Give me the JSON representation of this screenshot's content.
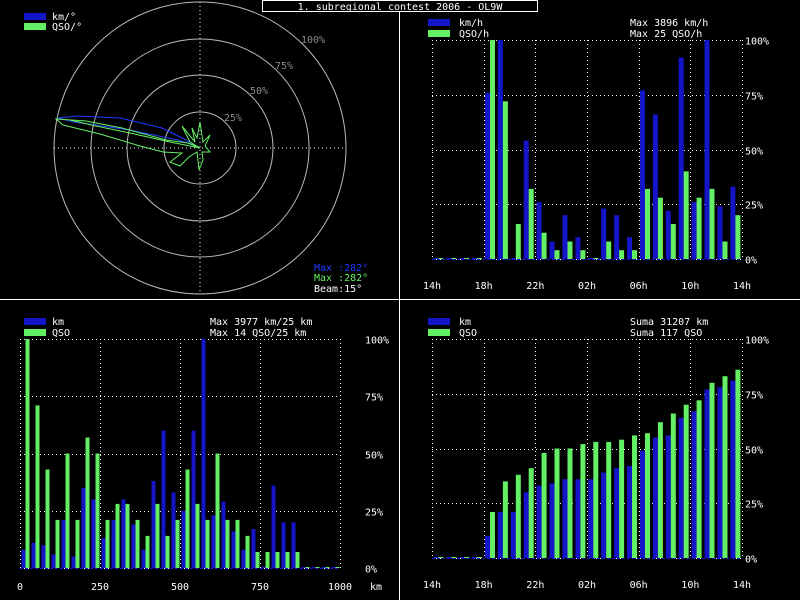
{
  "title": "1. subregional contest 2006 - OL9W",
  "colors": {
    "km": "#1414c8",
    "qso": "#64f064",
    "text": "#ffffff",
    "grid": "#ffffff",
    "ring": "#bbbbbb",
    "ringLabel": "#888888",
    "peak": "#1e3cff"
  },
  "polar": {
    "legend": [
      "km/°",
      "QSO/°"
    ],
    "rings": [
      "25%",
      "50%",
      "75%",
      "100%"
    ],
    "info": {
      "max_km": "Max :282°",
      "max_qso": "Max :282°",
      "beam": "Beam:15°"
    }
  },
  "chart_data": [
    {
      "type": "bar",
      "id": "time-chart",
      "legend": [
        "km/h",
        "QSO/h"
      ],
      "stats": [
        "Max  3896 km/h",
        "Max   25 QSO/h"
      ],
      "tick_labels": [
        "14h",
        "18h",
        "22h",
        "02h",
        "06h",
        "10h",
        "14h"
      ],
      "y_ticks": [
        "0%",
        "25%",
        "50%",
        "75%",
        "100%"
      ],
      "x_range": [
        14,
        38
      ],
      "y_range": [
        0,
        100
      ],
      "series": [
        {
          "key": "km",
          "values": [
            0,
            0,
            0,
            0,
            76,
            100,
            0,
            54,
            26,
            8,
            20,
            10,
            0,
            23,
            20,
            10,
            77,
            66,
            22,
            92,
            26,
            100,
            24,
            33
          ]
        },
        {
          "key": "qso",
          "values": [
            0,
            0,
            0,
            0,
            100,
            72,
            16,
            32,
            12,
            4,
            8,
            4,
            0,
            8,
            4,
            4,
            32,
            28,
            16,
            40,
            28,
            32,
            8,
            20
          ]
        }
      ]
    },
    {
      "type": "bar",
      "id": "distance-chart",
      "legend": [
        "km",
        "QSO"
      ],
      "stats": [
        "Max  3977 km/25 km",
        "Max   14 QSO/25 km"
      ],
      "tick_labels": [
        "0",
        "250",
        "500",
        "750",
        "1000",
        "km"
      ],
      "x_ticks": [
        0,
        250,
        500,
        750,
        1000
      ],
      "y_ticks": [
        "0%",
        "25%",
        "50%",
        "75%",
        "100%"
      ],
      "x_range": [
        0,
        1000
      ],
      "y_range": [
        0,
        100
      ],
      "series": [
        {
          "key": "km",
          "values": [
            8,
            11,
            10,
            6,
            21,
            5,
            35,
            30,
            13,
            21,
            30,
            19,
            8,
            38,
            60,
            33,
            25,
            60,
            100,
            23,
            29,
            16,
            8,
            17,
            0,
            36,
            20,
            20,
            0,
            0,
            0,
            0
          ]
        },
        {
          "key": "qso",
          "values": [
            100,
            71,
            43,
            21,
            50,
            21,
            57,
            50,
            21,
            28,
            28,
            21,
            14,
            28,
            14,
            21,
            43,
            28,
            21,
            50,
            21,
            21,
            14,
            7,
            7,
            7,
            7,
            7,
            0,
            0,
            0,
            0
          ]
        }
      ]
    },
    {
      "type": "bar",
      "id": "cumulative-chart",
      "legend": [
        "km",
        "QSO"
      ],
      "stats": [
        "Suma  31207 km",
        "Suma   117 QSO"
      ],
      "tick_labels": [
        "14h",
        "18h",
        "22h",
        "02h",
        "06h",
        "10h",
        "14h"
      ],
      "y_ticks": [
        "0%",
        "25%",
        "50%",
        "75%",
        "100%"
      ],
      "x_range": [
        14,
        38
      ],
      "y_range": [
        0,
        100
      ],
      "series": [
        {
          "key": "km",
          "values": [
            0,
            0,
            0,
            0,
            10,
            21,
            21,
            30,
            33,
            34,
            36,
            36,
            36,
            39,
            41,
            42,
            49,
            55,
            56,
            64,
            67,
            77,
            78,
            81
          ]
        },
        {
          "key": "qso",
          "values": [
            0,
            0,
            0,
            0,
            21,
            35,
            38,
            41,
            48,
            50,
            50,
            52,
            53,
            53,
            54,
            56,
            57,
            62,
            66,
            70,
            72,
            80,
            83,
            86
          ]
        }
      ]
    }
  ]
}
